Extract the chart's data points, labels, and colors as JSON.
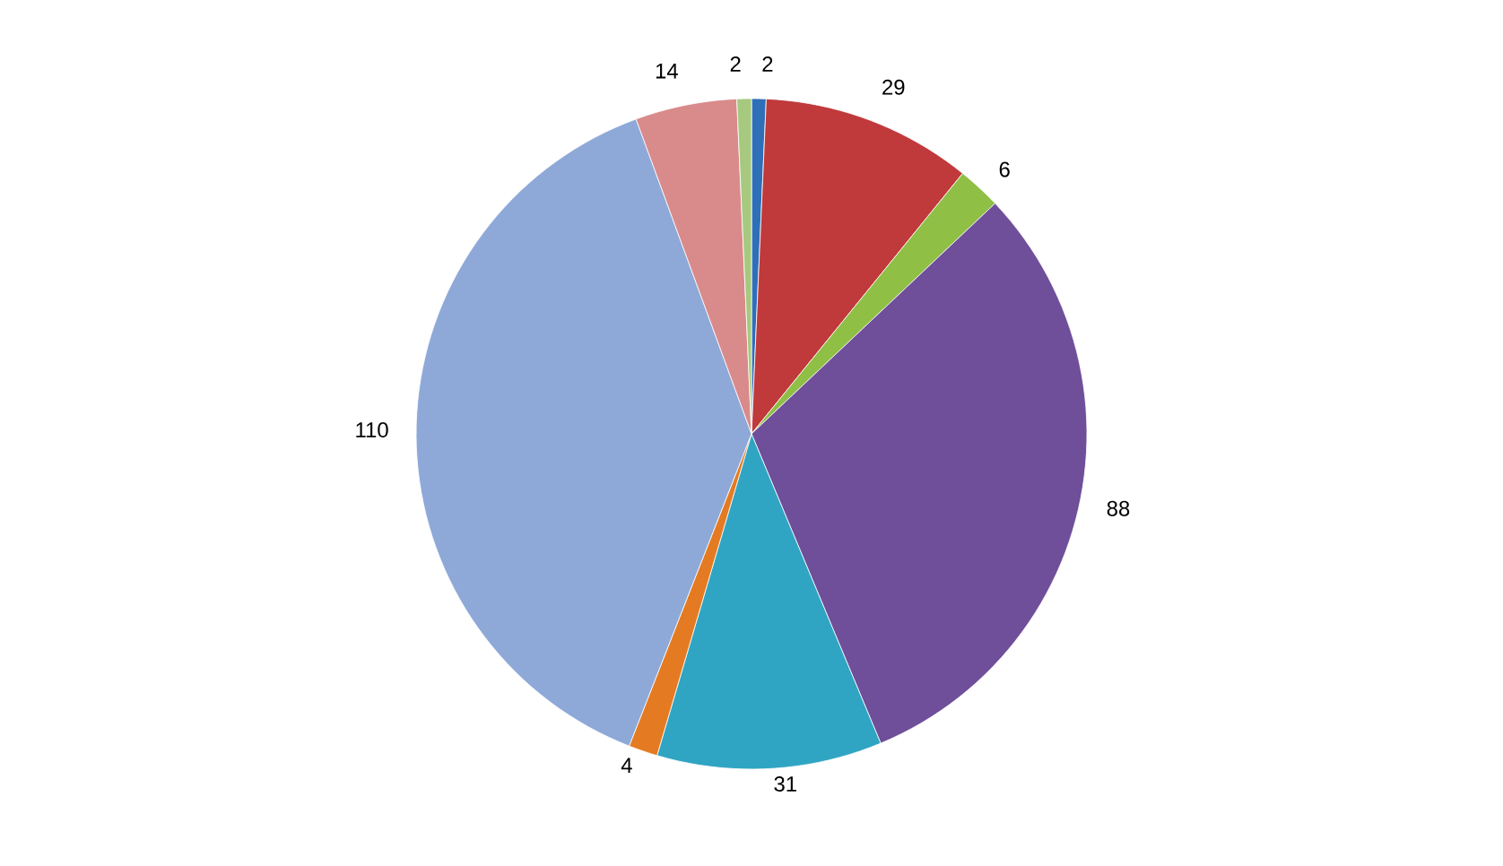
{
  "chart_data": {
    "type": "pie",
    "categories": [
      null,
      null,
      null,
      null,
      null,
      null,
      null,
      null,
      null
    ],
    "values": [
      2,
      29,
      6,
      88,
      31,
      4,
      110,
      14,
      2
    ],
    "colors": [
      "#2e6fb8",
      "#c0393b",
      "#8fbf44",
      "#6f4e9a",
      "#2fa5c3",
      "#e47b22",
      "#8ea9d8",
      "#d98a8a",
      "#a6c97f"
    ],
    "data_labels": true
  }
}
